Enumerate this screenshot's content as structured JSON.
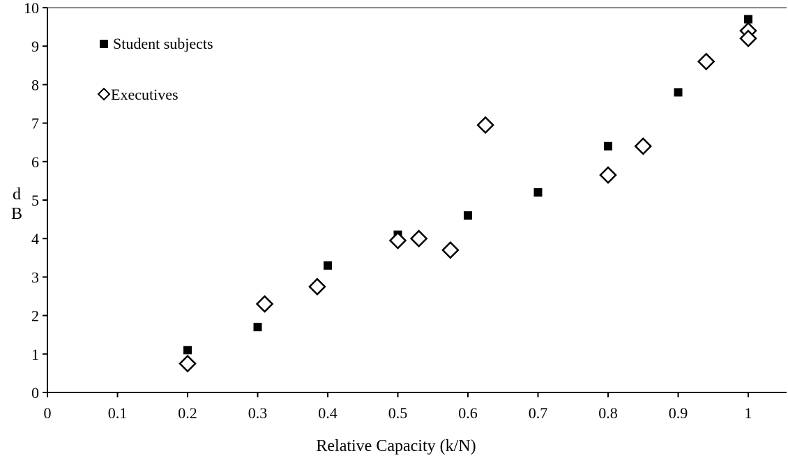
{
  "chart_data": {
    "type": "scatter",
    "title": "",
    "xlabel": "Relative Capacity (k/N)",
    "ylabel": "dB",
    "xlim": [
      0,
      1.05
    ],
    "ylim": [
      0,
      10
    ],
    "x_ticks": [
      "0",
      "0.1",
      "0.2",
      "0.3",
      "0.4",
      "0.5",
      "0.6",
      "0.7",
      "0.8",
      "0.9",
      "1"
    ],
    "y_ticks": [
      "0",
      "1",
      "2",
      "3",
      "4",
      "5",
      "6",
      "7",
      "8",
      "9",
      "10"
    ],
    "grid": false,
    "legend_position": "top-left",
    "series": [
      {
        "name": "Student subjects",
        "marker": "square",
        "color": "#000000",
        "points": [
          {
            "x": 0.2,
            "y": 1.1
          },
          {
            "x": 0.3,
            "y": 1.7
          },
          {
            "x": 0.4,
            "y": 3.3
          },
          {
            "x": 0.5,
            "y": 4.1
          },
          {
            "x": 0.6,
            "y": 4.6
          },
          {
            "x": 0.7,
            "y": 5.2
          },
          {
            "x": 0.8,
            "y": 6.4
          },
          {
            "x": 0.9,
            "y": 7.8
          },
          {
            "x": 1.0,
            "y": 9.7
          }
        ]
      },
      {
        "name": "Executives",
        "marker": "diamond",
        "color": "#000000",
        "points": [
          {
            "x": 0.2,
            "y": 0.75
          },
          {
            "x": 0.31,
            "y": 2.3
          },
          {
            "x": 0.385,
            "y": 2.75
          },
          {
            "x": 0.5,
            "y": 3.95
          },
          {
            "x": 0.53,
            "y": 4.0
          },
          {
            "x": 0.575,
            "y": 3.7
          },
          {
            "x": 0.625,
            "y": 6.95
          },
          {
            "x": 0.8,
            "y": 5.65
          },
          {
            "x": 0.85,
            "y": 6.4
          },
          {
            "x": 0.94,
            "y": 8.6
          },
          {
            "x": 1.0,
            "y": 9.4
          },
          {
            "x": 1.0,
            "y": 9.2
          }
        ]
      }
    ]
  }
}
